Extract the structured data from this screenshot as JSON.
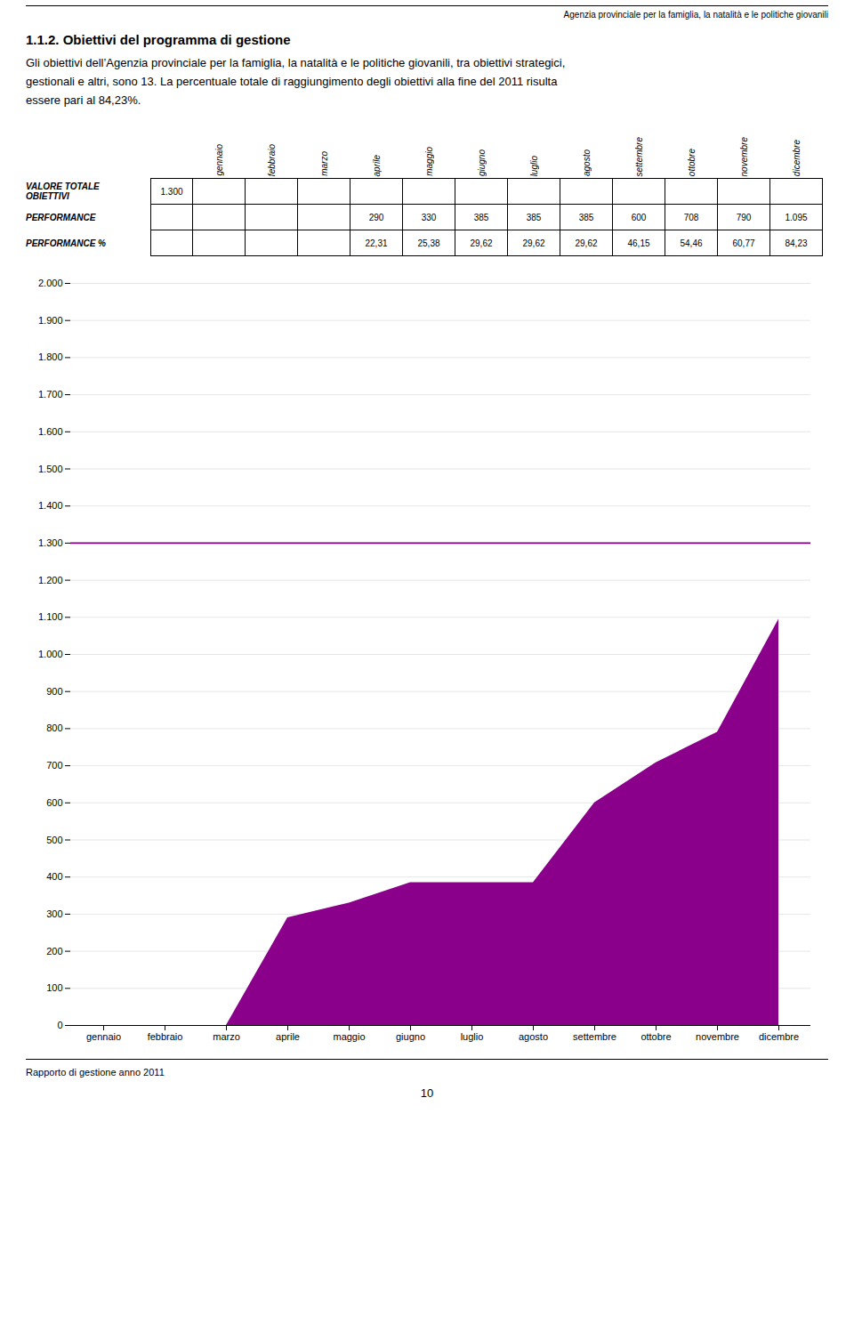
{
  "header_text": "Agenzia provinciale per la famiglia, la natalità e le politiche giovanili",
  "body_text": [
    "Gli obiettivi dell’Agenzia provinciale per la famiglia, la natalità e le politiche giovanili, tra obiettivi strategici,",
    "gestionali e altri, sono 13. La percentuale totale di raggiungimento degli obiettivi alla fine del 2011 risulta",
    "essere pari al 84,23%."
  ],
  "table": {
    "columns": [
      "gennaio",
      "febbraio",
      "marzo",
      "aprile",
      "maggio",
      "giugno",
      "luglio",
      "agosto",
      "settembre",
      "ottobre",
      "novembre",
      "dicembre"
    ],
    "rows": [
      {
        "label": "VALORE TOTALE\nOBIETTIVI",
        "total": "1.300",
        "values": [
          null,
          null,
          null,
          null,
          null,
          null,
          null,
          null,
          null,
          null,
          null,
          null
        ]
      },
      {
        "label": "PERFORMANCE",
        "total": null,
        "values": [
          null,
          null,
          null,
          "290",
          "330",
          "385",
          "385",
          "385",
          "600",
          "708",
          "790",
          "1.095"
        ]
      },
      {
        "label": "PERFORMANCE %",
        "total": null,
        "values": [
          null,
          null,
          null,
          "22,31",
          "25,38",
          "29,62",
          "29,62",
          "29,62",
          "46,15",
          "54,46",
          "60,77",
          "84,23"
        ]
      }
    ]
  },
  "chart_data": {
    "type": "area",
    "title": "1.1.2.   Obiettivi del programma di gestione",
    "categories": [
      "gennaio",
      "febbraio",
      "marzo",
      "aprile",
      "maggio",
      "giugno",
      "luglio",
      "agosto",
      "settembre",
      "ottobre",
      "novembre",
      "dicembre"
    ],
    "values": [
      0,
      0,
      0,
      290,
      330,
      385,
      385,
      385,
      600,
      708,
      790,
      1095
    ],
    "color": "#8B008B",
    "reference_line": {
      "value": 1300,
      "color": "#800080"
    },
    "ylim": [
      0,
      2000
    ],
    "yticks": [
      0,
      100,
      200,
      300,
      400,
      500,
      600,
      700,
      800,
      900,
      {
        "value": 1000,
        "label": "1.000"
      },
      {
        "value": 1100,
        "label": "1.100"
      },
      {
        "value": 1200,
        "label": "1.200"
      },
      {
        "value": 1300,
        "label": "1.300"
      },
      {
        "value": 1400,
        "label": "1.400"
      },
      {
        "value": 1500,
        "label": "1.500"
      },
      {
        "value": 1600,
        "label": "1.600"
      },
      {
        "value": 1700,
        "label": "1.700"
      },
      {
        "value": 1800,
        "label": "1.800"
      },
      {
        "value": 1900,
        "label": "1.900"
      },
      {
        "value": 2000,
        "label": "2.000"
      }
    ],
    "grid": true
  },
  "footer_text": "Rapporto di gestione anno 2011",
  "page_number": "10"
}
